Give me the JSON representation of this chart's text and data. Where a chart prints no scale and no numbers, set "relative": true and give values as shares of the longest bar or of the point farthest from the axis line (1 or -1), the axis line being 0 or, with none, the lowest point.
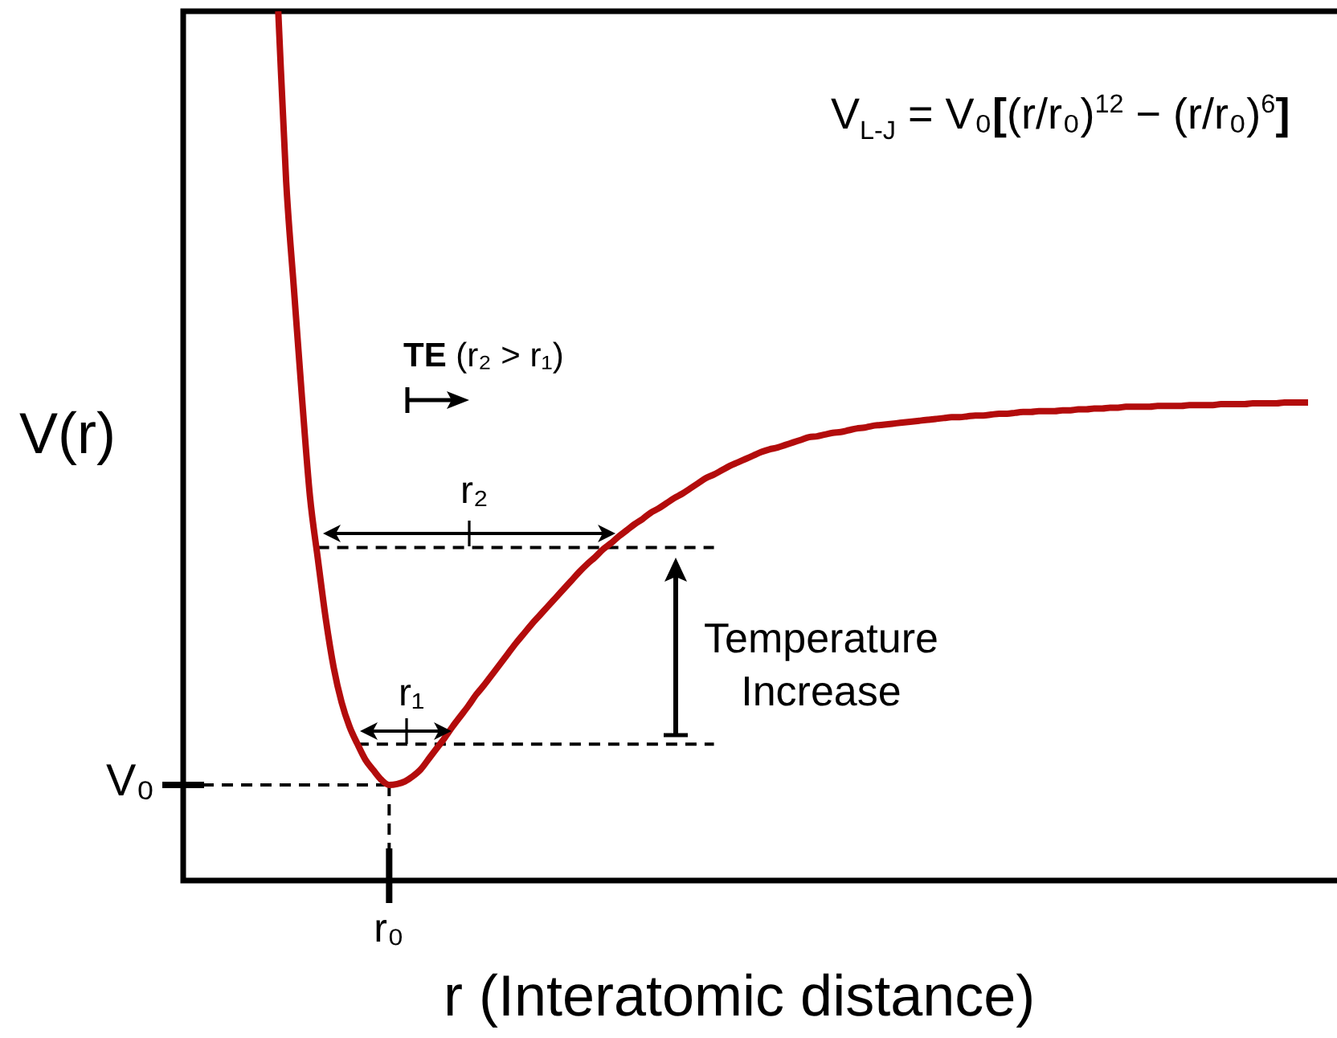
{
  "chart_data": {
    "type": "line",
    "relative": true,
    "marker": "none",
    "xlabel": "r (Interatomic distance)",
    "ylabel": "V(r)",
    "categories": [
      null,
      null,
      null,
      null,
      null,
      null,
      null,
      null,
      null,
      null,
      null,
      null,
      null,
      null,
      null,
      null,
      null,
      null,
      null,
      null,
      null,
      null,
      null,
      null,
      null,
      null,
      null,
      null,
      null,
      null,
      null,
      null,
      null,
      null,
      null,
      null,
      null,
      null,
      null,
      null,
      null,
      null,
      null,
      null,
      null,
      null,
      null,
      null,
      null,
      null,
      null,
      null,
      null,
      null,
      null,
      null,
      null,
      null,
      null,
      null,
      null,
      null,
      null,
      null,
      null,
      null,
      null,
      null,
      null,
      null,
      null,
      null,
      null,
      null,
      null,
      null,
      null,
      null,
      null,
      null,
      null,
      null,
      null,
      null,
      null,
      null,
      null,
      null,
      null,
      null,
      null,
      null,
      null,
      null,
      null,
      null,
      null,
      null,
      null,
      null,
      null,
      null,
      null,
      null,
      null,
      null,
      null,
      null,
      null,
      null,
      null,
      null,
      null,
      null,
      null,
      null,
      null,
      null,
      null,
      null,
      null,
      null,
      null,
      null,
      null,
      null,
      null,
      null,
      null,
      null,
      null,
      null,
      null,
      null,
      null,
      null,
      null,
      null,
      null,
      null,
      null,
      null,
      null
    ],
    "series": [
      {
        "color": "#b30c0c",
        "line_style": "solid",
        "values": [
          null,
          null,
          null,
          null,
          null,
          null,
          null,
          null,
          null,
          null,
          null,
          null,
          1.0,
          0.804,
          0.678,
          0.555,
          0.442,
          0.37,
          0.301,
          0.245,
          0.205,
          0.177,
          0.157,
          0.139,
          0.127,
          0.116,
          0.11,
          0.111,
          0.114,
          0.12,
          0.128,
          0.14,
          0.152,
          0.164,
          0.177,
          0.189,
          0.201,
          0.214,
          0.225,
          0.237,
          0.249,
          0.261,
          0.273,
          0.284,
          0.295,
          0.305,
          0.315,
          0.325,
          0.335,
          0.345,
          0.355,
          0.364,
          0.372,
          0.381,
          0.388,
          0.396,
          0.403,
          0.41,
          0.416,
          0.423,
          0.428,
          0.434,
          0.44,
          0.445,
          0.451,
          0.457,
          0.463,
          0.467,
          0.472,
          0.477,
          0.481,
          0.485,
          0.489,
          0.493,
          0.496,
          0.498,
          0.501,
          0.504,
          0.507,
          0.51,
          0.511,
          0.513,
          0.515,
          0.516,
          0.518,
          0.52,
          0.521,
          0.523,
          0.524,
          0.525,
          0.526,
          0.527,
          0.528,
          0.529,
          0.53,
          0.531,
          0.532,
          0.533,
          0.533,
          0.534,
          0.535,
          0.535,
          0.536,
          0.537,
          0.537,
          0.538,
          0.539,
          0.539,
          0.54,
          0.54,
          0.54,
          0.541,
          0.541,
          0.542,
          0.542,
          0.543,
          0.543,
          0.544,
          0.544,
          0.545,
          0.545,
          0.545,
          0.545,
          0.546,
          0.546,
          0.546,
          0.546,
          0.547,
          0.547,
          0.547,
          0.547,
          0.548,
          0.548,
          0.548,
          0.548,
          0.549,
          0.549,
          0.549,
          0.549,
          0.55,
          0.55,
          0.55,
          0.55
        ]
      },
      {
        "color": "#000000",
        "line_style": "dashed",
        "values": [
          null,
          null,
          null,
          null,
          null,
          null,
          null,
          null,
          null,
          null,
          null,
          null,
          null,
          null,
          null,
          null,
          null,
          0.383,
          0.383,
          0.383,
          0.383,
          0.383,
          0.383,
          0.383,
          0.383,
          0.383,
          0.383,
          0.383,
          0.383,
          0.383,
          0.383,
          0.383,
          0.383,
          0.383,
          0.383,
          0.383,
          0.383,
          0.383,
          0.383,
          0.383,
          0.383,
          0.383,
          0.383,
          0.383,
          0.383,
          0.383,
          0.383,
          0.383,
          0.383,
          0.383,
          0.383,
          0.383,
          0.383,
          0.383,
          0.383,
          0.383,
          0.383,
          0.383,
          0.383,
          0.383,
          0.383,
          0.383,
          0.383,
          0.383,
          0.383,
          0.383,
          0.383,
          0.383,
          null,
          null,
          null,
          null,
          null,
          null,
          null,
          null,
          null,
          null,
          null,
          null,
          null,
          null,
          null,
          null,
          null,
          null,
          null,
          null,
          null,
          null,
          null,
          null,
          null,
          null,
          null,
          null,
          null,
          null,
          null,
          null,
          null,
          null,
          null,
          null,
          null,
          null,
          null,
          null,
          null,
          null,
          null,
          null,
          null,
          null,
          null,
          null,
          null,
          null,
          null,
          null,
          null,
          null,
          null,
          null,
          null,
          null,
          null,
          null,
          null,
          null,
          null,
          null,
          null,
          null,
          null,
          null,
          null,
          null,
          null,
          null,
          null,
          null,
          null
        ]
      },
      {
        "color": "#000000",
        "line_style": "dashed",
        "values": [
          null,
          null,
          null,
          null,
          null,
          null,
          null,
          null,
          null,
          null,
          null,
          null,
          null,
          null,
          null,
          null,
          null,
          null,
          null,
          null,
          null,
          null,
          0.157,
          0.157,
          0.157,
          0.157,
          0.157,
          0.157,
          0.157,
          0.157,
          0.157,
          0.157,
          0.157,
          0.157,
          0.157,
          0.157,
          0.157,
          0.157,
          0.157,
          0.157,
          0.157,
          0.157,
          0.157,
          0.157,
          0.157,
          0.157,
          0.157,
          0.157,
          0.157,
          0.157,
          0.157,
          0.157,
          0.157,
          0.157,
          0.157,
          0.157,
          0.157,
          0.157,
          0.157,
          0.157,
          0.157,
          0.157,
          0.157,
          0.157,
          0.157,
          0.157,
          0.157,
          0.157,
          null,
          null,
          null,
          null,
          null,
          null,
          null,
          null,
          null,
          null,
          null,
          null,
          null,
          null,
          null,
          null,
          null,
          null,
          null,
          null,
          null,
          null,
          null,
          null,
          null,
          null,
          null,
          null,
          null,
          null,
          null,
          null,
          null,
          null,
          null,
          null,
          null,
          null,
          null,
          null,
          null,
          null,
          null,
          null,
          null,
          null,
          null,
          null,
          null,
          null,
          null,
          null,
          null,
          null,
          null,
          null,
          null,
          null,
          null,
          null,
          null,
          null,
          null,
          null,
          null,
          null,
          null,
          null,
          null,
          null,
          null,
          null,
          null,
          null,
          null
        ]
      }
    ],
    "ref_lines": [
      {
        "axis": "y",
        "value": 0.11,
        "label": "V₀",
        "color": "#000000",
        "line_style": "dashed"
      }
    ],
    "annotations": [
      "V$_{L-J}$ = V₀[(r/r₀)$^{12}$ − (r/r₀)$^{6}$]",
      "TE (r₂ > r₁)",
      "r₂",
      "r₁",
      "Temperature Increase",
      "r₀"
    ]
  }
}
